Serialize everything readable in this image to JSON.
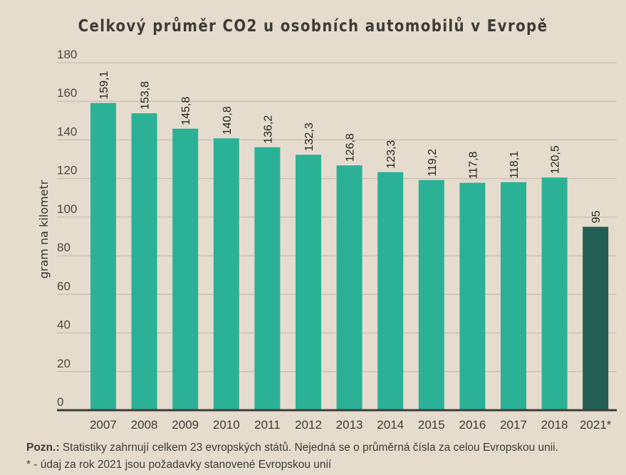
{
  "chart_data": {
    "type": "bar",
    "title": "Celkový průměr CO2 u osobních automobilů v Evropě",
    "xlabel": "",
    "ylabel": "gram na kilometr",
    "ylim": [
      0,
      180
    ],
    "yticks": [
      0,
      20,
      40,
      60,
      80,
      100,
      120,
      140,
      160,
      180
    ],
    "grid": true,
    "categories": [
      "2007",
      "2008",
      "2009",
      "2010",
      "2011",
      "2012",
      "2013",
      "2014",
      "2015",
      "2016",
      "2017",
      "2018",
      "2021*"
    ],
    "values": [
      159.1,
      153.8,
      145.8,
      140.8,
      136.2,
      132.3,
      126.8,
      123.3,
      119.2,
      117.8,
      118.1,
      120.5,
      95
    ],
    "value_labels": [
      "159,1",
      "153,8",
      "145,8",
      "140,8",
      "136,2",
      "132,3",
      "126,8",
      "123,3",
      "119,2",
      "117,8",
      "118,1",
      "120,5",
      "95"
    ],
    "colors": {
      "bar": "#2bb196",
      "bar_highlight": "#235e52",
      "highlight_index": 12,
      "grid": "#c9bfb0",
      "axis": "#3e3c38"
    }
  },
  "notes": {
    "label": "Pozn.:",
    "line1": "Statistiky zahrnují celkem 23 evropských států. Nejedná se o průměrná čísla za celou Evropskou unii.",
    "line2": "* - údaj za rok 2021 jsou požadavky stanovené Evropskou unií"
  }
}
